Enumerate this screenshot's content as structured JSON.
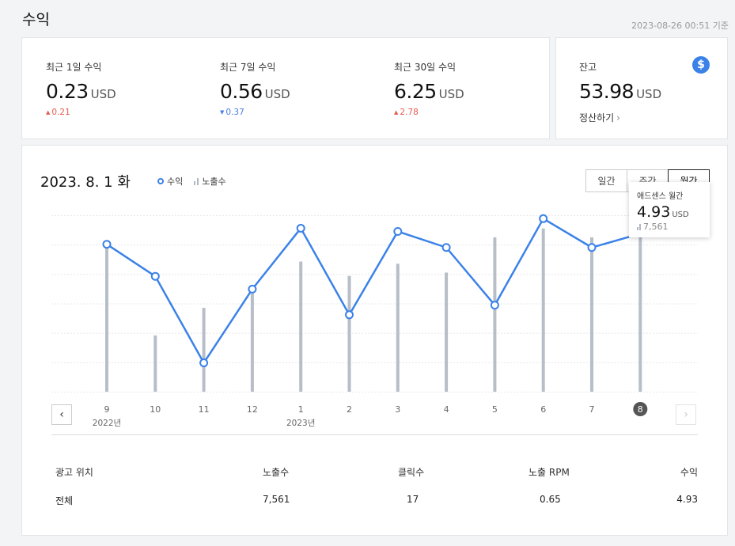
{
  "header": {
    "title": "수익",
    "updated": "2023-08-26 00:51 기준"
  },
  "stats": [
    {
      "label": "최근 1일 수익",
      "value": "0.23",
      "unit": "USD",
      "delta": "0.21",
      "direction": "up"
    },
    {
      "label": "최근 7일 수익",
      "value": "0.56",
      "unit": "USD",
      "delta": "0.37",
      "direction": "down"
    },
    {
      "label": "최근 30일 수익",
      "value": "6.25",
      "unit": "USD",
      "delta": "2.78",
      "direction": "up"
    }
  ],
  "balance": {
    "label": "잔고",
    "value": "53.98",
    "unit": "USD",
    "settle_label": "정산하기",
    "icon": "dollar-icon"
  },
  "chart": {
    "date": "2023. 8. 1 화",
    "legend": {
      "revenue": "수익",
      "impressions": "노출수"
    },
    "tabs": [
      "일간",
      "주간",
      "월간"
    ],
    "active_tab": "월간",
    "tooltip": {
      "title": "애드센스 월간",
      "value": "4.93",
      "unit": "USD",
      "impressions": "7,561"
    },
    "year_labels": [
      "2022년",
      "2023년"
    ]
  },
  "chart_data": {
    "type": "line",
    "categories": [
      "9",
      "10",
      "11",
      "12",
      "1",
      "2",
      "3",
      "4",
      "5",
      "6",
      "7",
      "8"
    ],
    "series": [
      {
        "name": "수익",
        "values": [
          4.6,
          3.6,
          0.9,
          3.2,
          5.1,
          2.4,
          5.0,
          4.5,
          2.7,
          5.4,
          4.5,
          4.93
        ]
      },
      {
        "name": "노출수",
        "values": [
          6700,
          2550,
          3800,
          4450,
          5900,
          5250,
          5800,
          5400,
          7000,
          7400,
          7000,
          7561
        ]
      }
    ],
    "selected_index": 11,
    "colors": {
      "line": "#3b82e8",
      "bar": "#b7bec8",
      "grid": "#e6e8eb"
    }
  },
  "table": {
    "headers": [
      "광고 위치",
      "노출수",
      "클릭수",
      "노출 RPM",
      "수익"
    ],
    "rows": [
      [
        "전체",
        "7,561",
        "17",
        "0.65",
        "4.93"
      ]
    ]
  }
}
